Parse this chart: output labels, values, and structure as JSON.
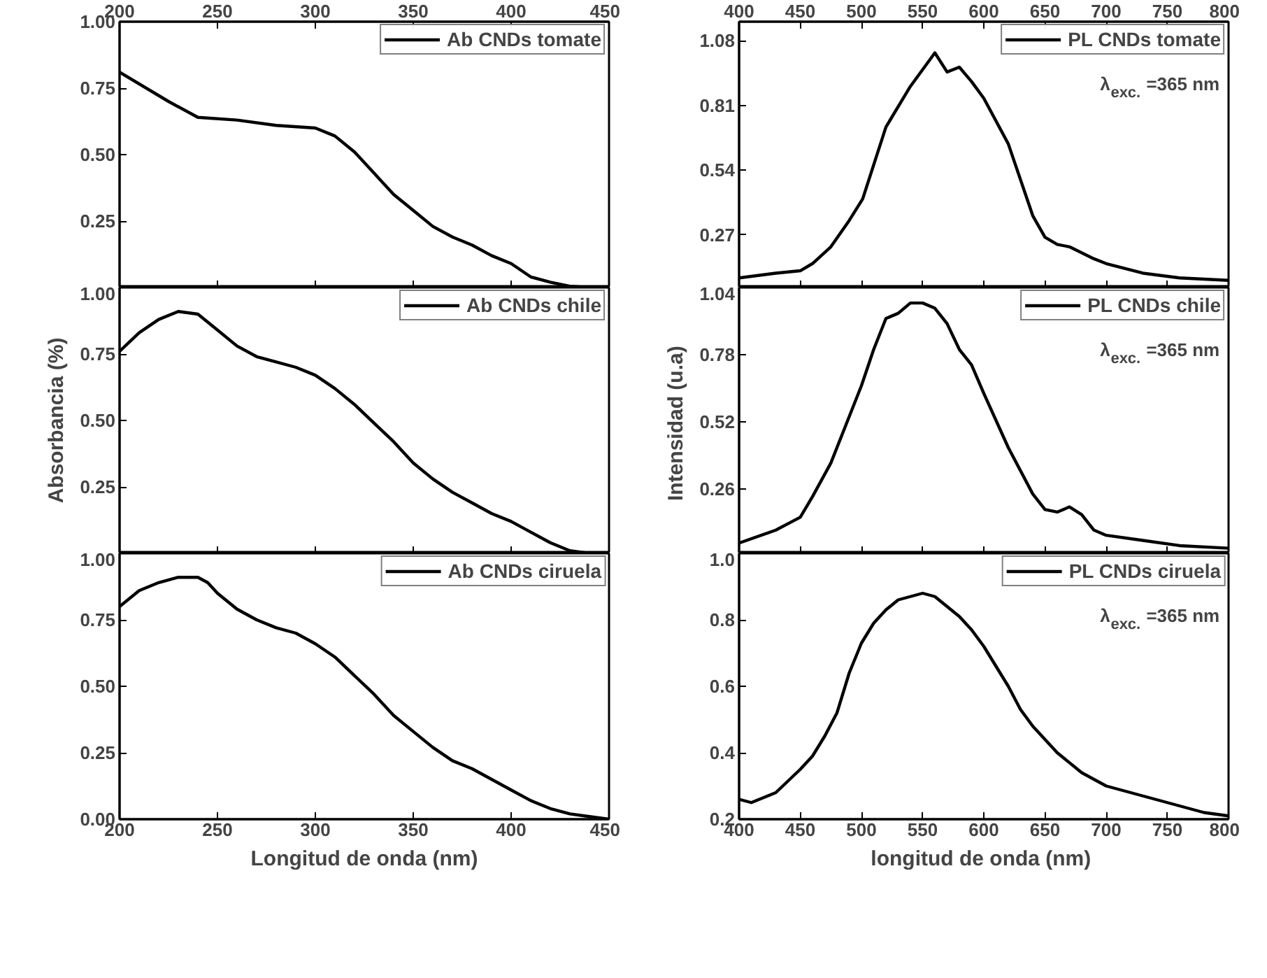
{
  "chart_data": [
    {
      "type": "line",
      "x": [
        200,
        225,
        240,
        260,
        280,
        300,
        310,
        320,
        330,
        340,
        350,
        360,
        370,
        380,
        390,
        400,
        410,
        420,
        430,
        440,
        450
      ],
      "xlim": [
        200,
        450
      ],
      "xticks": [
        200,
        250,
        300,
        350,
        400,
        450
      ],
      "x2lim": [
        200,
        450
      ],
      "x2ticks": [
        200,
        250,
        300,
        350,
        400,
        450
      ],
      "ylim": [
        0,
        1
      ],
      "yticks": [
        0.25,
        {
          "value": 0.5,
          "label": "0.50"
        },
        0.75,
        {
          "value": 1,
          "label": "1.00"
        }
      ],
      "tick_labels": "y",
      "legend": "top right",
      "line_style": "solid",
      "grid": false,
      "series": [
        {
          "name": "Ab CNDs tomate",
          "color": "#000000",
          "values": [
            0.81,
            0.7,
            0.64,
            0.63,
            0.61,
            0.6,
            0.57,
            0.51,
            0.43,
            0.35,
            0.29,
            0.23,
            0.19,
            0.16,
            0.12,
            0.09,
            0.04,
            0.02,
            0.005,
            0.0,
            0.0
          ]
        }
      ]
    },
    {
      "type": "line",
      "x": [
        200,
        210,
        220,
        230,
        240,
        250,
        260,
        270,
        280,
        290,
        300,
        310,
        320,
        330,
        340,
        350,
        360,
        370,
        380,
        390,
        400,
        410,
        420,
        430,
        440
      ],
      "xlim": [
        200,
        450
      ],
      "xticks": [
        200,
        250,
        300,
        350,
        400,
        450
      ],
      "ylim": [
        0,
        1
      ],
      "yticks": [
        0.25,
        {
          "value": 0.5,
          "label": "0.50"
        },
        0.75,
        {
          "value": 1,
          "label": "1.00"
        }
      ],
      "ylabel": "Absorbancia (%)",
      "tick_labels": "y",
      "legend": "top right",
      "line_style": "solid",
      "grid": false,
      "series": [
        {
          "name": "Ab CNDs chile",
          "color": "#000000",
          "values": [
            0.76,
            0.83,
            0.88,
            0.91,
            0.9,
            0.84,
            0.78,
            0.74,
            0.72,
            0.7,
            0.67,
            0.62,
            0.56,
            0.49,
            0.42,
            0.34,
            0.28,
            0.23,
            0.19,
            0.15,
            0.12,
            0.08,
            0.04,
            0.01,
            0.0
          ]
        }
      ]
    },
    {
      "type": "line",
      "x": [
        200,
        210,
        220,
        230,
        240,
        245,
        250,
        260,
        270,
        280,
        290,
        300,
        310,
        320,
        330,
        340,
        350,
        360,
        370,
        380,
        390,
        400,
        410,
        420,
        430,
        440,
        450
      ],
      "xlim": [
        200,
        450
      ],
      "xticks": [
        200,
        250,
        300,
        350,
        400,
        450
      ],
      "ylim": [
        0,
        1
      ],
      "yticks": [
        {
          "value": 0,
          "label": "0.00"
        },
        0.25,
        {
          "value": 0.5,
          "label": "0.50"
        },
        0.75,
        {
          "value": 1,
          "label": "1.00"
        }
      ],
      "xlabel": "Longitud de onda (nm)",
      "legend": "top right",
      "line_style": "solid",
      "grid": false,
      "series": [
        {
          "name": "Ab CNDs ciruela",
          "color": "#000000",
          "values": [
            0.8,
            0.86,
            0.89,
            0.91,
            0.91,
            0.89,
            0.85,
            0.79,
            0.75,
            0.72,
            0.7,
            0.66,
            0.61,
            0.54,
            0.47,
            0.39,
            0.33,
            0.27,
            0.22,
            0.19,
            0.15,
            0.11,
            0.07,
            0.04,
            0.02,
            0.01,
            0.0
          ]
        }
      ]
    },
    {
      "type": "line",
      "x": [
        400,
        430,
        450,
        460,
        475,
        490,
        501,
        520,
        540,
        560,
        570,
        580,
        590,
        600,
        620,
        640,
        650,
        660,
        670,
        690,
        700,
        730,
        760,
        800
      ],
      "xlim": [
        400,
        800
      ],
      "xticks": [
        400,
        450,
        500,
        550,
        600,
        650,
        700,
        750,
        800
      ],
      "x2lim": [
        400,
        800
      ],
      "x2ticks": [
        400,
        450,
        500,
        550,
        600,
        650,
        700,
        750,
        800
      ],
      "ylim": [
        0.05,
        1.16
      ],
      "yticks": [
        0.27,
        0.54,
        0.81,
        1.08
      ],
      "tick_labels": "y",
      "legend": "top right",
      "line_style": "solid",
      "grid": false,
      "annotations": [
        "λ$_{exc.}$=365 nm"
      ],
      "series": [
        {
          "name": "PL CNDs tomate",
          "color": "#000000",
          "values": [
            0.09,
            0.11,
            0.12,
            0.15,
            0.22,
            0.33,
            0.42,
            0.72,
            0.89,
            1.03,
            0.95,
            0.97,
            0.91,
            0.84,
            0.65,
            0.35,
            0.26,
            0.23,
            0.22,
            0.17,
            0.15,
            0.11,
            0.09,
            0.08
          ]
        }
      ]
    },
    {
      "type": "line",
      "x": [
        400,
        430,
        450,
        460,
        475,
        490,
        500,
        510,
        520,
        530,
        540,
        550,
        560,
        570,
        580,
        590,
        600,
        620,
        640,
        650,
        660,
        670,
        680,
        690,
        700,
        730,
        760,
        800
      ],
      "xlim": [
        400,
        800
      ],
      "xticks": [
        400,
        450,
        500,
        550,
        600,
        650,
        700,
        750,
        800
      ],
      "ylim": [
        0.01,
        1.04
      ],
      "yticks": [
        0.26,
        0.52,
        0.78,
        1.04
      ],
      "ylabel": "Intensidad  (u.a)",
      "tick_labels": "y",
      "legend": "top right",
      "line_style": "solid",
      "grid": false,
      "annotations": [
        "λ$_{exc.}$=365 nm"
      ],
      "series": [
        {
          "name": "PL CNDs chile",
          "color": "#000000",
          "values": [
            0.05,
            0.1,
            0.15,
            0.23,
            0.36,
            0.54,
            0.66,
            0.8,
            0.92,
            0.94,
            0.98,
            0.98,
            0.96,
            0.9,
            0.8,
            0.74,
            0.63,
            0.42,
            0.24,
            0.18,
            0.17,
            0.19,
            0.16,
            0.1,
            0.08,
            0.06,
            0.04,
            0.03
          ]
        }
      ]
    },
    {
      "type": "line",
      "x": [
        400,
        410,
        430,
        450,
        460,
        470,
        480,
        490,
        500,
        510,
        520,
        530,
        540,
        550,
        560,
        570,
        580,
        590,
        600,
        610,
        620,
        630,
        640,
        650,
        660,
        680,
        700,
        720,
        740,
        760,
        780,
        800
      ],
      "xlim": [
        400,
        800
      ],
      "xticks": [
        400,
        450,
        500,
        550,
        600,
        650,
        700,
        750,
        800
      ],
      "ylim": [
        0.2,
        1.0
      ],
      "yticks": [
        0.2,
        0.4,
        0.6,
        0.8,
        {
          "value": 1.0,
          "label": "1.0"
        }
      ],
      "xlabel": "longitud de onda  (nm)",
      "legend": "top right",
      "line_style": "solid",
      "grid": false,
      "annotations": [
        "λ$_{exc.}$=365 nm"
      ],
      "series": [
        {
          "name": "PL CNDs ciruela",
          "color": "#000000",
          "values": [
            0.26,
            0.25,
            0.28,
            0.35,
            0.39,
            0.45,
            0.52,
            0.64,
            0.73,
            0.79,
            0.83,
            0.86,
            0.87,
            0.88,
            0.87,
            0.84,
            0.81,
            0.77,
            0.72,
            0.66,
            0.6,
            0.53,
            0.48,
            0.44,
            0.4,
            0.34,
            0.3,
            0.28,
            0.26,
            0.24,
            0.22,
            0.21
          ]
        }
      ]
    }
  ]
}
